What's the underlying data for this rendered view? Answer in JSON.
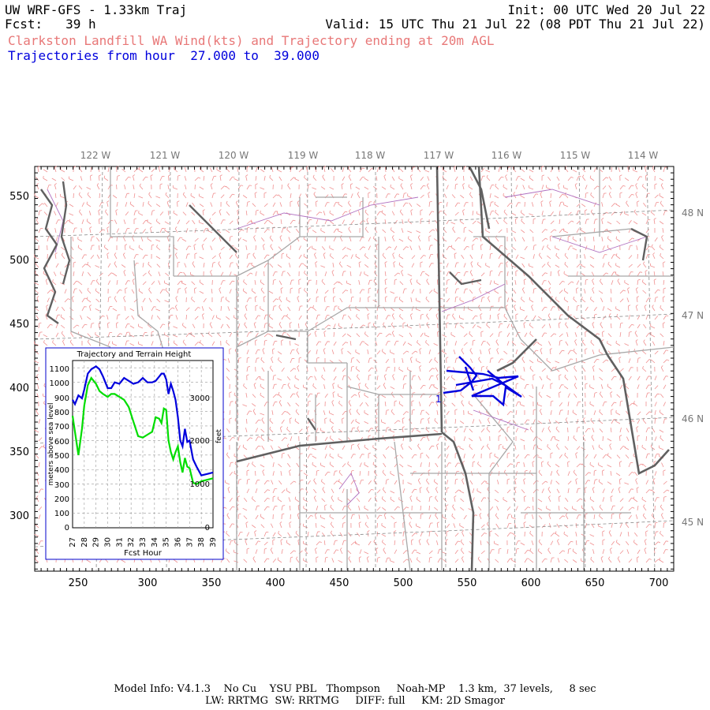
{
  "header": {
    "title": "UW WRF-GFS - 1.33km Traj",
    "init": "Init: 00 UTC Wed 20 Jul 22",
    "fcst": "Fcst:   39 h",
    "valid": "Valid: 15 UTC Thu 21 Jul 22 (08 PDT Thu 21 Jul 22)",
    "subtitle": "Clarkston Landfill WA Wind(kts) and Trajectory ending at 20m AGL",
    "trajectory_range": "Trajectories from hour  27.000 to  39.000"
  },
  "map": {
    "x_ticks": [
      "250",
      "300",
      "350",
      "400",
      "450",
      "500",
      "550",
      "600",
      "650",
      "700"
    ],
    "y_ticks": [
      "300",
      "350",
      "400",
      "450",
      "500",
      "550"
    ],
    "lon_labels": [
      "122 W",
      "121 W",
      "120 W",
      "119 W",
      "118 W",
      "117 W",
      "116 W",
      "115 W",
      "114 W"
    ],
    "lat_labels": [
      "48 N",
      "47 N",
      "46 N",
      "45 N"
    ],
    "trajectory_marker": "1",
    "colors": {
      "wind_barbs": "#f09090",
      "counties": "#a0a0a0",
      "states": "#606060",
      "rivers": "#b070c0",
      "trajectory": "#0000dd"
    }
  },
  "inset": {
    "title": "Trajectory and Terrain Height",
    "ylabel": "meters above sea level",
    "ylabel_right": "feet",
    "xlabel": "Fcst Hour",
    "y_ticks": [
      "0",
      "100",
      "200",
      "300",
      "400",
      "500",
      "600",
      "700",
      "800",
      "900",
      "1000",
      "1100"
    ],
    "y_ticks_right": [
      "0",
      "1000",
      "2000",
      "3000"
    ],
    "x_ticks": [
      "27",
      "28",
      "29",
      "30",
      "31",
      "32",
      "33",
      "34",
      "35",
      "36",
      "37",
      "38",
      "39"
    ]
  },
  "chart_data": {
    "type": "line",
    "title": "Trajectory and Terrain Height",
    "xlabel": "Fcst Hour",
    "ylabel": "meters above sea level",
    "xlim": [
      27,
      39
    ],
    "ylim": [
      0,
      1150
    ],
    "series": [
      {
        "color": "#0000dd",
        "x": [
          27,
          27.2,
          27.5,
          27.8,
          28,
          28.3,
          28.6,
          29,
          29.3,
          29.6,
          30,
          30.3,
          30.6,
          31,
          31.4,
          31.8,
          32.2,
          32.6,
          33,
          33.4,
          33.8,
          34.1,
          34.4,
          34.6,
          34.8,
          35,
          35.2,
          35.4,
          35.6,
          35.8,
          36,
          36.2,
          36.4,
          36.6,
          36.8,
          37,
          37.3,
          37.6,
          38,
          38.5,
          39
        ],
        "y": [
          880,
          850,
          910,
          890,
          950,
          1060,
          1090,
          1110,
          1090,
          1040,
          960,
          960,
          1000,
          990,
          1030,
          1010,
          990,
          1000,
          1030,
          1000,
          1000,
          1010,
          1040,
          1060,
          1060,
          1020,
          920,
          990,
          940,
          880,
          760,
          600,
          560,
          680,
          590,
          600,
          470,
          420,
          360,
          370,
          380
        ]
      },
      {
        "color": "#00dd00",
        "x": [
          27,
          27.2,
          27.5,
          27.8,
          28,
          28.3,
          28.6,
          29,
          29.3,
          29.6,
          30,
          30.3,
          30.6,
          31,
          31.4,
          31.8,
          32.2,
          32.6,
          33,
          33.4,
          33.8,
          34.1,
          34.4,
          34.6,
          34.8,
          35,
          35.2,
          35.4,
          35.6,
          35.8,
          36,
          36.2,
          36.4,
          36.6,
          36.8,
          37,
          37.3,
          37.6,
          38,
          38.5,
          39
        ],
        "y": [
          770,
          660,
          500,
          680,
          840,
          980,
          1030,
          990,
          940,
          920,
          900,
          920,
          920,
          900,
          880,
          830,
          730,
          630,
          620,
          640,
          660,
          760,
          750,
          720,
          820,
          810,
          600,
          520,
          470,
          520,
          560,
          450,
          380,
          480,
          420,
          410,
          310,
          300,
          320,
          330,
          340
        ]
      }
    ]
  },
  "footer": {
    "line1": "Model Info: V4.1.3    No Cu    YSU PBL   Thompson     Noah-MP    1.3 km,  37 levels,     8 sec",
    "line2": "LW: RRTMG  SW: RRTMG     DIFF: full     KM: 2D Smagor"
  }
}
